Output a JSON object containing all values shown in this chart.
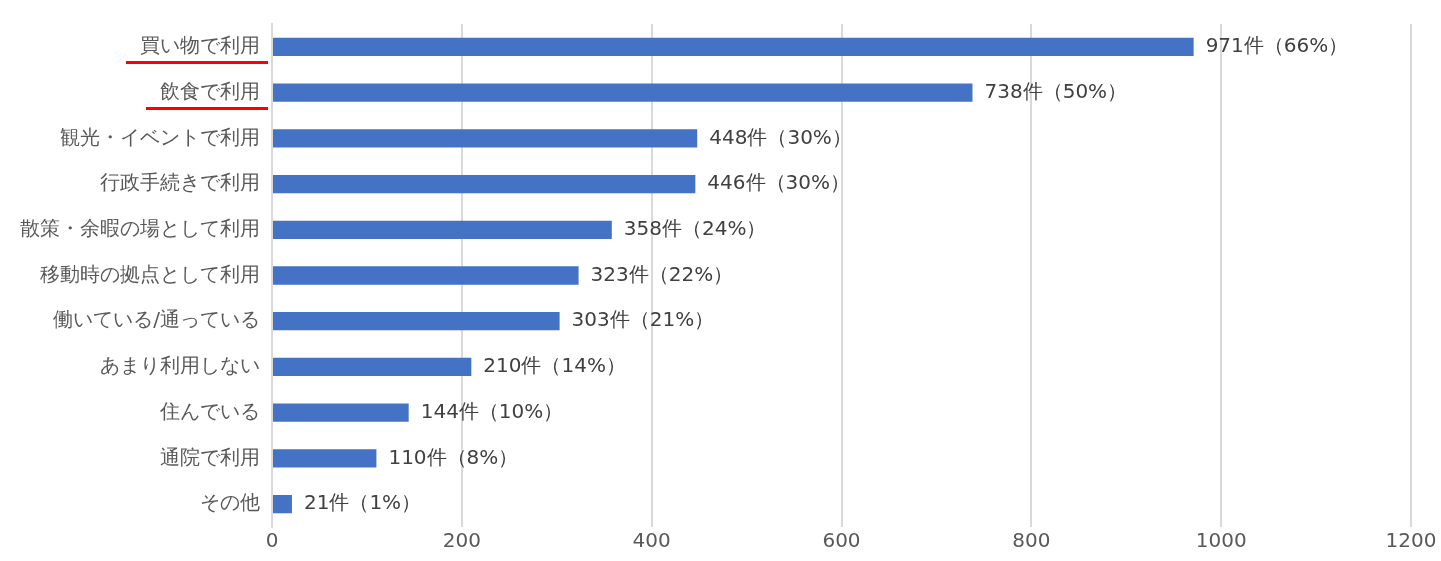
{
  "chart_data": {
    "type": "bar",
    "orientation": "horizontal",
    "categories": [
      "買い物で利用",
      "飲食で利用",
      "観光・イベントで利用",
      "行政手続きで利用",
      "散策・余暇の場として利用",
      "移動時の拠点として利用",
      "働いている/通っている",
      "あまり利用しない",
      "住んでいる",
      "通院で利用",
      "その他"
    ],
    "values": [
      971,
      738,
      448,
      446,
      358,
      323,
      303,
      210,
      144,
      110,
      21
    ],
    "value_labels": [
      "971件（66%）",
      "738件（50%）",
      "448件（30%）",
      "446件（30%）",
      "358件（24%）",
      "323件（22%）",
      "303件（21%）",
      "210件（14%）",
      "144件（10%）",
      "110件（8%）",
      "21件（1%）"
    ],
    "color": "#4472c4",
    "xlim": [
      0,
      1200
    ],
    "xticks": [
      0,
      200,
      400,
      600,
      800,
      1000,
      1200
    ],
    "grid": "x",
    "legend": false
  }
}
